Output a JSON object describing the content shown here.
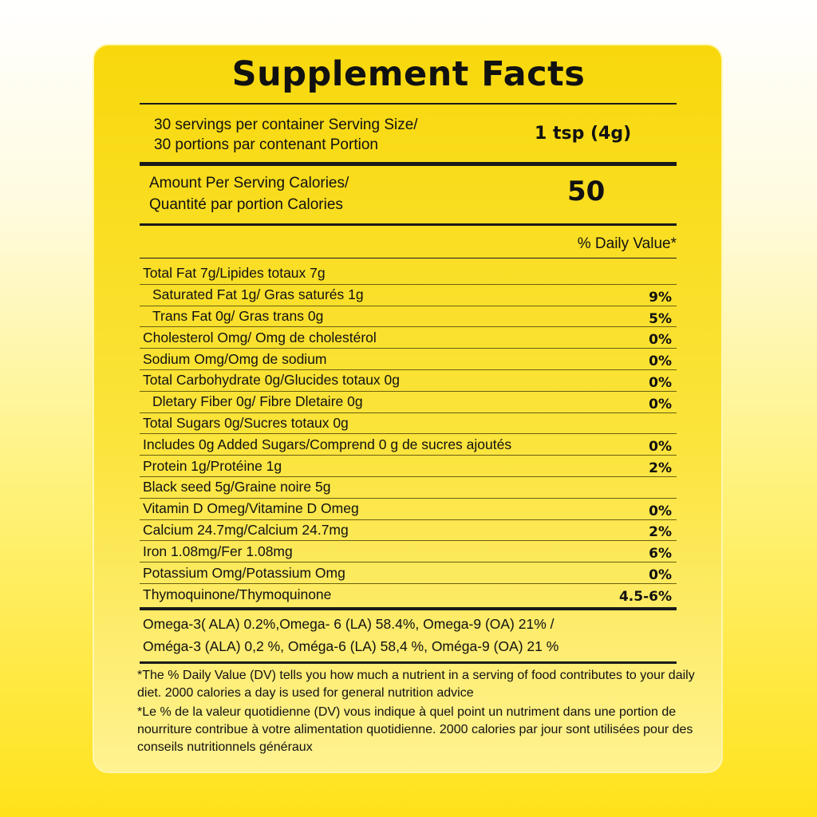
{
  "title": "Supplement Facts",
  "serving": {
    "line1": "30 servings per container Serving Size/",
    "line2": "30 portions par contenant Portion",
    "size": "1 tsp (4g)"
  },
  "calories": {
    "line1": "Amount Per Serving Calories/",
    "line2": "Quantité par portion Calories",
    "value": "50"
  },
  "dv_header": "% Daily Value*",
  "rows": [
    {
      "label": "Total Fat 7g/Lipides totaux 7g",
      "pct": ""
    },
    {
      "label": "Saturated Fat 1g/   Gras saturés 1g",
      "pct": "9%"
    },
    {
      "label": "Trans Fat 0g/   Gras trans 0g",
      "pct": "5%"
    },
    {
      "label": "Cholesterol Omg/ Omg de cholestérol",
      "pct": "0%"
    },
    {
      "label": "Sodium Omg/Omg de sodium",
      "pct": "0%"
    },
    {
      "label": "Total Carbohydrate 0g/Glucides totaux 0g",
      "pct": "0%"
    },
    {
      "label": "Dletary Fiber 0g/  Fibre Dletaire 0g",
      "pct": "0%"
    },
    {
      "label": "Total Sugars 0g/Sucres totaux 0g",
      "pct": ""
    },
    {
      "label": "Includes 0g Added Sugars/Comprend 0 g de sucres ajoutés",
      "pct": "0%"
    },
    {
      "label": "Protein 1g/Protéine 1g",
      "pct": "2%"
    },
    {
      "label": "Black seed 5g/Graine noire 5g",
      "pct": ""
    },
    {
      "label": "Vitamin D Omeg/Vitamine D Omeg",
      "pct": "0%"
    },
    {
      "label": "Calcium 24.7mg/Calcium 24.7mg",
      "pct": "2%"
    },
    {
      "label": "Iron 1.08mg/Fer 1.08mg",
      "pct": "6%"
    },
    {
      "label": "Potassium Omg/Potassium Omg",
      "pct": "0%"
    },
    {
      "label": "Thymoquinone/Thymoquinone",
      "pct": "4.5-6%"
    }
  ],
  "omega": {
    "line1": "Omega-3( ALA) 0.2%,Omega- 6 (LA) 58.4%, Omega-9 (OA) 21% /",
    "line2": "Oméga-3 (ALA) 0,2 %, Oméga-6 (LA) 58,4 %, Oméga-9 (OA) 21 %"
  },
  "footnotes": {
    "en": "*The % Daily Value (DV) tells you how much a nutrient in a serving of food contributes to your daily diet. 2000 calories a day is used for general nutrition advice",
    "fr": "*Le % de la valeur quotidienne (DV) vous indique à quel point un nutriment dans une portion de nourriture contribue à votre alimentation quotidienne. 2000 calories par jour sont utilisées pour des conseils nutritionnels généraux"
  }
}
